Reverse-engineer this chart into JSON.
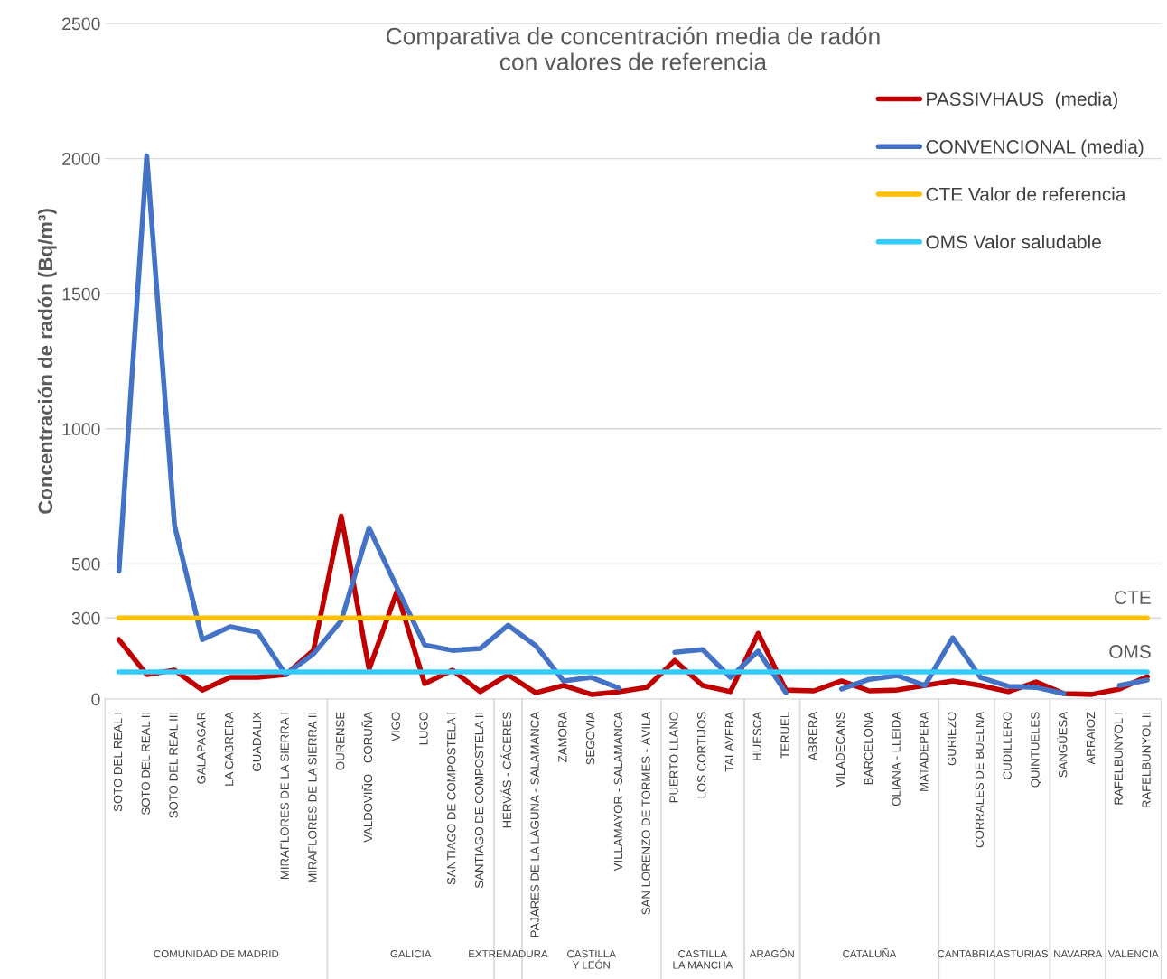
{
  "chart_data": {
    "type": "line",
    "title": "Comparativa de concentración media de radón\ncon valores de referencia",
    "ylabel": "Concentración de radón (Bq/m³)",
    "categories": [
      "SOTO DEL REAL I",
      "SOTO DEL REAL II",
      "SOTO DEL REAL III",
      "GALAPAGAR",
      "LA CABRERA",
      "GUADALIX",
      "MIRAFLORES DE LA SIERRA I",
      "MIRAFLORES DE LA SIERRA II",
      "OURENSE",
      "VALDOVIÑO - CORUÑA",
      "VIGO",
      "LUGO",
      "SANTIAGO DE COMPOSTELA I",
      "SANTIAGO DE COMPOSTELA II",
      "HERVÁS - CÁCERES",
      "PAJARES DE LA LAGUNA - SALAMANCA",
      "ZAMORA",
      "SEGOVIA",
      "VILLAMAYOR - SALAMANCA",
      "SAN LORENZO DE TORMES - ÁVILA",
      "PUERTO LLANO",
      "LOS CORTIJOS",
      "TALAVERA",
      "HUESCA",
      "TERUEL",
      "ABRERA",
      "VILADECANS",
      "BARCELONA",
      "OLIANA - LLEIDA",
      "MATADEPERA",
      "GURIEZO",
      "CORRALES DE BUELNA",
      "CUDILLERO",
      "QUINTUELES",
      "SANGÜESA",
      "ARRAIOZ",
      "RAFELBUNYOL I",
      "RAFELBUNYOL II"
    ],
    "series": [
      {
        "name": "PASSIVHAUS  (media)",
        "color": "#c00000",
        "values": [
          220,
          90,
          107,
          33,
          80,
          80,
          90,
          180,
          677,
          110,
          397,
          57,
          107,
          27,
          90,
          23,
          50,
          17,
          27,
          43,
          143,
          50,
          27,
          243,
          33,
          30,
          67,
          30,
          33,
          50,
          67,
          50,
          27,
          63,
          20,
          17,
          37,
          83
        ]
      },
      {
        "name": "CONVENCIONAL (media)",
        "color": "#4472c4",
        "values": [
          473,
          2010,
          643,
          220,
          267,
          247,
          90,
          167,
          290,
          633,
          413,
          200,
          180,
          187,
          273,
          197,
          67,
          80,
          40,
          null,
          173,
          183,
          80,
          177,
          23,
          null,
          37,
          73,
          87,
          50,
          227,
          80,
          47,
          43,
          20,
          null,
          50,
          70
        ]
      },
      {
        "name": "CTE Valor de referencia",
        "color": "#ffc000",
        "values": [
          300,
          300,
          300,
          300,
          300,
          300,
          300,
          300,
          300,
          300,
          300,
          300,
          300,
          300,
          300,
          300,
          300,
          300,
          300,
          300,
          300,
          300,
          300,
          300,
          300,
          300,
          300,
          300,
          300,
          300,
          300,
          300,
          300,
          300,
          300,
          300,
          300,
          300
        ]
      },
      {
        "name": "OMS Valor saludable",
        "color": "#33ccff",
        "values": [
          100,
          100,
          100,
          100,
          100,
          100,
          100,
          100,
          100,
          100,
          100,
          100,
          100,
          100,
          100,
          100,
          100,
          100,
          100,
          100,
          100,
          100,
          100,
          100,
          100,
          100,
          100,
          100,
          100,
          100,
          100,
          100,
          100,
          100,
          100,
          100,
          100,
          100
        ]
      }
    ],
    "annotations": [
      {
        "text": "CTE",
        "x": "RAFELBUNYOL II",
        "y": 300
      },
      {
        "text": "OMS",
        "x": "RAFELBUNYOL II",
        "y": 100
      },
      "COMUNIDAD DE MADRID",
      "GALICIA",
      "EXTREMADURA",
      "CASTILLA\nY LEÓN",
      "CASTILLA\nLA MANCHA",
      "ARAGÓN",
      "CATALUÑA",
      "CANTABRIA",
      "ASTURIAS",
      "NAVARRA",
      "VALENCIA"
    ],
    "ylim": [
      0,
      2500
    ],
    "yticks": [
      0,
      300,
      500,
      1000,
      1500,
      2000,
      2500
    ],
    "grid": "y",
    "legend": "right",
    "marker": "none",
    "line_style": "solid"
  }
}
